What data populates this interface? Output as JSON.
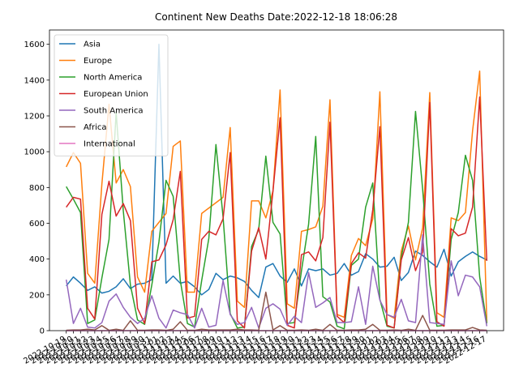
{
  "chart_data": {
    "type": "line",
    "title": "Continent New Deaths Date:2022-12-18 18:06:28",
    "xlabel": "",
    "ylabel": "",
    "ylim": [
      0,
      1680
    ],
    "y_ticks": [
      0,
      200,
      400,
      600,
      800,
      1000,
      1200,
      1400,
      1600
    ],
    "x_labels": [
      "2022-10-19",
      "2022-10-20",
      "2022-10-21",
      "2022-10-22",
      "2022-10-23",
      "2022-10-24",
      "2022-10-25",
      "2022-10-26",
      "2022-10-27",
      "2022-10-28",
      "2022-10-29",
      "2022-10-30",
      "2022-10-31",
      "2022-11-01",
      "2022-11-02",
      "2022-11-03",
      "2022-11-04",
      "2022-11-05",
      "2022-11-06",
      "2022-11-07",
      "2022-11-08",
      "2022-11-09",
      "2022-11-10",
      "2022-11-11",
      "2022-11-12",
      "2022-11-13",
      "2022-11-14",
      "2022-11-15",
      "2022-11-16",
      "2022-11-17",
      "2022-11-18",
      "2022-11-19",
      "2022-11-20",
      "2022-11-21",
      "2022-11-22",
      "2022-11-23",
      "2022-11-24",
      "2022-11-25",
      "2022-11-26",
      "2022-11-27",
      "2022-11-28",
      "2022-11-29",
      "2022-11-30",
      "2022-12-01",
      "2022-12-02",
      "2022-12-03",
      "2022-12-04",
      "2022-12-05",
      "2022-12-06",
      "2022-12-07",
      "2022-12-08",
      "2022-12-09",
      "2022-12-10",
      "2022-12-11",
      "2022-12-12",
      "2022-12-13",
      "2022-12-14",
      "2022-12-15",
      "2022-12-16",
      "2022-12-17"
    ],
    "legend_position": "top-left",
    "series": [
      {
        "name": "Asia",
        "color": "#1f77b4",
        "values": [
          250,
          300,
          265,
          225,
          245,
          210,
          220,
          245,
          290,
          235,
          260,
          265,
          285,
          1600,
          265,
          305,
          265,
          275,
          245,
          200,
          230,
          320,
          285,
          305,
          295,
          275,
          225,
          185,
          355,
          375,
          305,
          270,
          345,
          250,
          345,
          335,
          345,
          310,
          320,
          375,
          310,
          330,
          430,
          400,
          355,
          360,
          410,
          280,
          325,
          445,
          420,
          385,
          355,
          455,
          305,
          385,
          415,
          440,
          415,
          395
        ]
      },
      {
        "name": "Europe",
        "color": "#ff7f0e",
        "values": [
          915,
          995,
          935,
          320,
          265,
          820,
          1265,
          825,
          900,
          805,
          300,
          215,
          555,
          605,
          655,
          1030,
          1060,
          215,
          215,
          655,
          685,
          715,
          745,
          1135,
          165,
          130,
          725,
          725,
          630,
          780,
          1345,
          150,
          125,
          555,
          565,
          580,
          695,
          1290,
          90,
          75,
          420,
          515,
          475,
          625,
          1335,
          90,
          70,
          445,
          585,
          395,
          575,
          1330,
          100,
          75,
          630,
          615,
          660,
          1115,
          1450,
          45
        ]
      },
      {
        "name": "North America",
        "color": "#2ca02c",
        "values": [
          805,
          735,
          660,
          40,
          60,
          295,
          510,
          1220,
          670,
          255,
          60,
          35,
          255,
          495,
          840,
          750,
          280,
          40,
          20,
          280,
          515,
          1040,
          635,
          95,
          15,
          20,
          470,
          565,
          975,
          605,
          540,
          40,
          45,
          335,
          595,
          1085,
          190,
          160,
          25,
          10,
          365,
          400,
          690,
          825,
          175,
          25,
          15,
          410,
          605,
          1225,
          790,
          260,
          25,
          30,
          510,
          660,
          980,
          840,
          300,
          40
        ]
      },
      {
        "name": "European Union",
        "color": "#d62728",
        "values": [
          690,
          745,
          735,
          125,
          65,
          650,
          835,
          640,
          710,
          615,
          125,
          40,
          385,
          395,
          480,
          620,
          890,
          70,
          80,
          510,
          555,
          535,
          625,
          995,
          55,
          15,
          445,
          575,
          400,
          780,
          1190,
          30,
          15,
          425,
          440,
          390,
          520,
          1165,
          80,
          45,
          375,
          435,
          405,
          675,
          1140,
          30,
          15,
          395,
          520,
          335,
          440,
          1275,
          50,
          25,
          570,
          530,
          545,
          690,
          1305,
          390
        ]
      },
      {
        "name": "South America",
        "color": "#9467bd",
        "values": [
          285,
          40,
          125,
          20,
          15,
          45,
          165,
          205,
          130,
          75,
          40,
          70,
          195,
          70,
          15,
          115,
          100,
          90,
          15,
          125,
          20,
          30,
          280,
          90,
          35,
          45,
          130,
          15,
          125,
          150,
          120,
          30,
          80,
          45,
          325,
          130,
          155,
          185,
          45,
          45,
          50,
          245,
          35,
          360,
          170,
          90,
          75,
          175,
          55,
          45,
          535,
          45,
          40,
          35,
          390,
          195,
          310,
          300,
          245,
          25
        ]
      },
      {
        "name": "Africa",
        "color": "#8c564b",
        "values": [
          2,
          4,
          4,
          8,
          4,
          28,
          2,
          8,
          2,
          55,
          2,
          2,
          4,
          4,
          2,
          8,
          50,
          2,
          2,
          8,
          4,
          4,
          4,
          4,
          8,
          4,
          4,
          2,
          215,
          4,
          28,
          2,
          2,
          4,
          2,
          8,
          2,
          35,
          2,
          2,
          4,
          4,
          8,
          35,
          2,
          2,
          4,
          2,
          8,
          2,
          85,
          2,
          2,
          2,
          4,
          4,
          4,
          18,
          4,
          2
        ]
      },
      {
        "name": "International",
        "color": "#e377c2",
        "values": [
          0,
          0,
          0,
          0,
          0,
          0,
          0,
          0,
          0,
          0,
          0,
          0,
          0,
          0,
          0,
          0,
          0,
          0,
          0,
          0,
          0,
          0,
          0,
          0,
          0,
          0,
          0,
          0,
          0,
          0,
          0,
          0,
          0,
          0,
          0,
          0,
          0,
          0,
          0,
          0,
          0,
          0,
          0,
          0,
          0,
          0,
          0,
          0,
          0,
          0,
          0,
          0,
          0,
          0,
          0,
          0,
          0,
          0,
          0,
          0
        ]
      }
    ]
  }
}
